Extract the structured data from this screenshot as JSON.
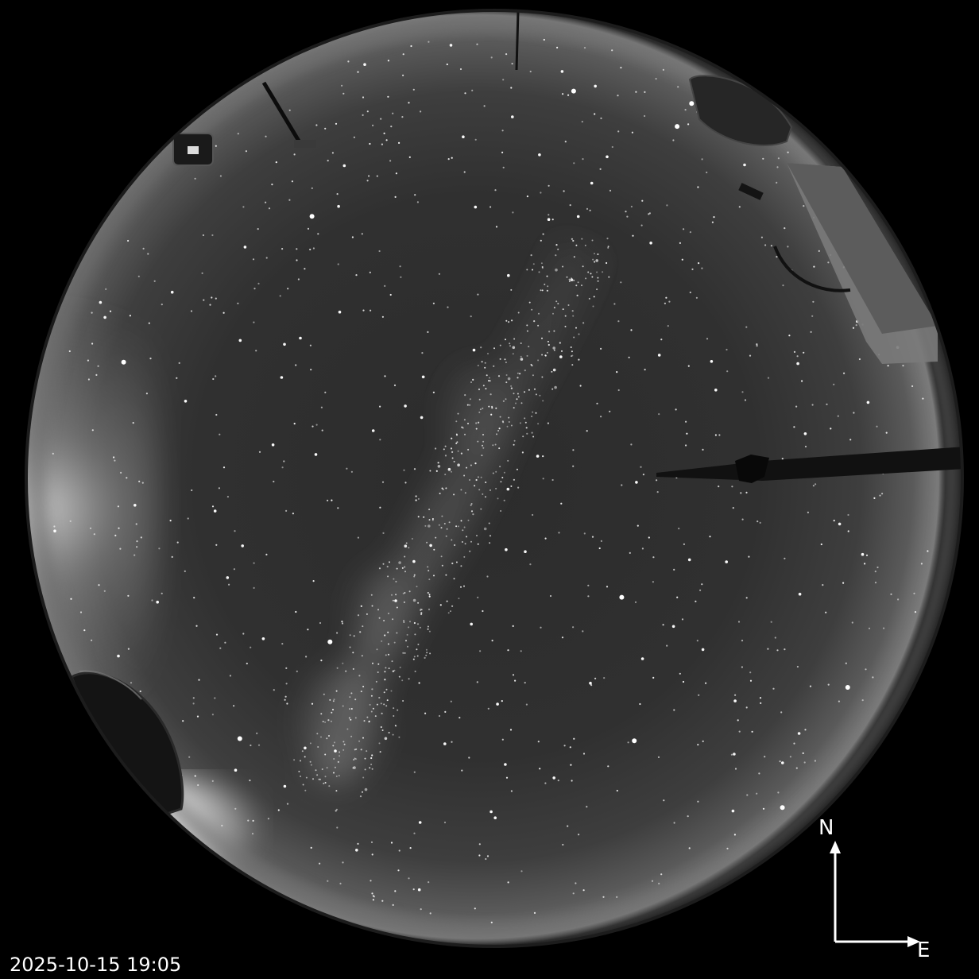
{
  "timestamp": "2025-10-15 19:05",
  "compass": {
    "north_label": "N",
    "east_label": "E",
    "arrow_icon": "compass-arrows-icon"
  },
  "colors": {
    "background": "#000000",
    "sky_center": "#2b2b2b",
    "sky_horizon": "#9a9a9a",
    "text": "#ffffff"
  }
}
